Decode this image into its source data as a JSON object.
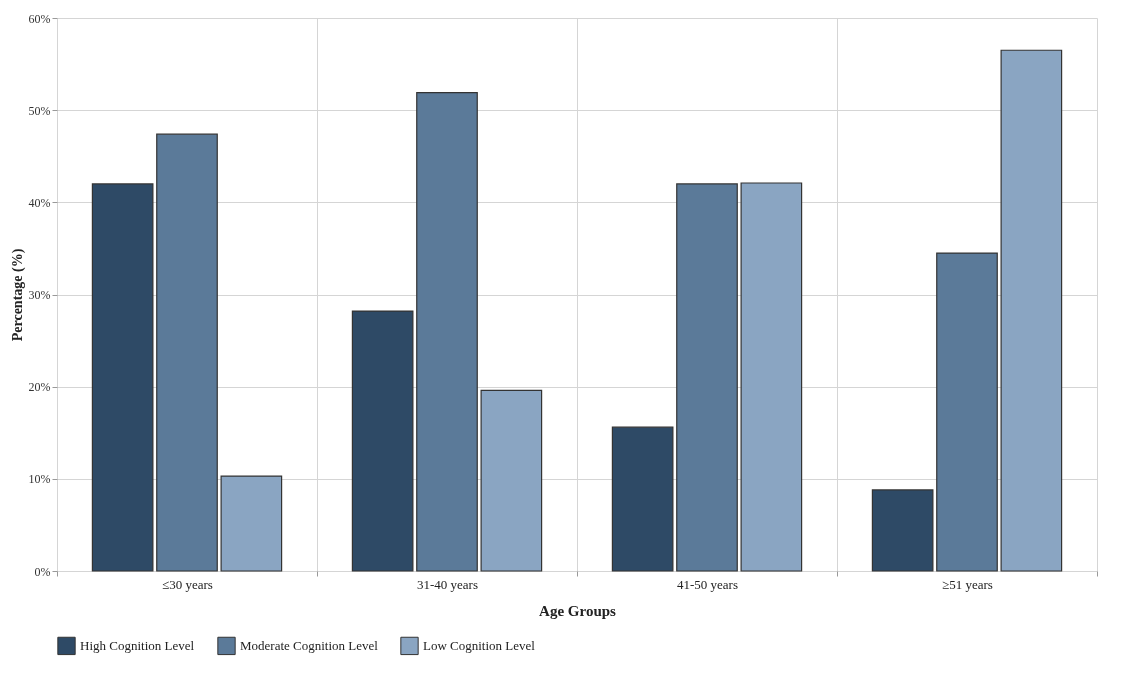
{
  "chart_data": {
    "type": "bar",
    "xlabel": "Age Groups",
    "ylabel": "Percentage (%)",
    "categories": [
      "≤30 years",
      "31-40 years",
      "41-50 years",
      "≥51 years"
    ],
    "series": [
      {
        "name": "High Cognition Level",
        "color": "#2e4a66",
        "values": [
          42.0,
          28.2,
          15.6,
          8.8
        ]
      },
      {
        "name": "Moderate Cognition Level",
        "color": "#5b7a99",
        "values": [
          47.4,
          51.9,
          42.0,
          34.5
        ]
      },
      {
        "name": "Low Cognition Level",
        "color": "#8aa5c2",
        "values": [
          10.3,
          19.6,
          42.1,
          56.5
        ]
      }
    ],
    "ylim": [
      0,
      60
    ],
    "yticks": [
      {
        "value": 0,
        "label": "0%"
      },
      {
        "value": 10,
        "label": "10%"
      },
      {
        "value": 20,
        "label": "20%"
      },
      {
        "value": 30,
        "label": "30%"
      },
      {
        "value": 40,
        "label": "40%"
      },
      {
        "value": 50,
        "label": "50%"
      },
      {
        "value": 60,
        "label": "60%"
      }
    ],
    "grid": true,
    "legend": "bottom"
  }
}
